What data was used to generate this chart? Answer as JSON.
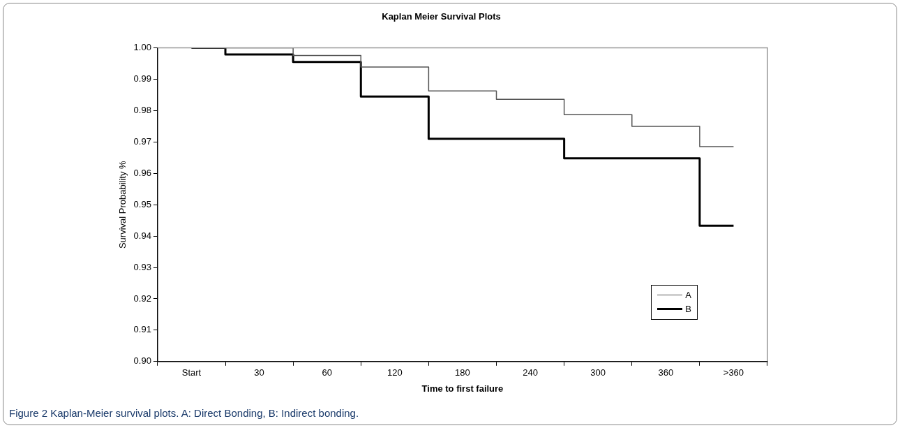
{
  "chart_data": {
    "type": "step",
    "title": "Kaplan Meier Survival Plots",
    "xlabel": "Time to first failure",
    "ylabel": "Survival Probability %",
    "categories": [
      "Start",
      "30",
      "60",
      "120",
      "180",
      "240",
      "300",
      "360",
      ">360"
    ],
    "series": [
      {
        "name": "A",
        "color": "#555555",
        "values": [
          1.0,
          1.0,
          0.9976,
          0.9939,
          0.9863,
          0.9836,
          0.9787,
          0.975,
          0.9685
        ]
      },
      {
        "name": "B",
        "color": "#000000",
        "values": [
          1.0,
          0.9979,
          0.9955,
          0.9845,
          0.971,
          0.971,
          0.9648,
          0.9648,
          0.9433
        ]
      }
    ],
    "ylim": [
      0.9,
      1.0
    ],
    "yticks": [
      {
        "value": 0.9,
        "label": "0.90"
      },
      0.91,
      0.92,
      0.93,
      0.94,
      0.95,
      0.96,
      0.97,
      0.98,
      0.99,
      {
        "value": 1.0,
        "label": "1.00"
      }
    ],
    "grid": false,
    "legend": "bottom right",
    "marker": "none",
    "line_style": "solid",
    "annotations": [
      "Figure 2 Kaplan-Meier survival plots. A: Direct Bonding, B: Indirect bonding."
    ]
  }
}
